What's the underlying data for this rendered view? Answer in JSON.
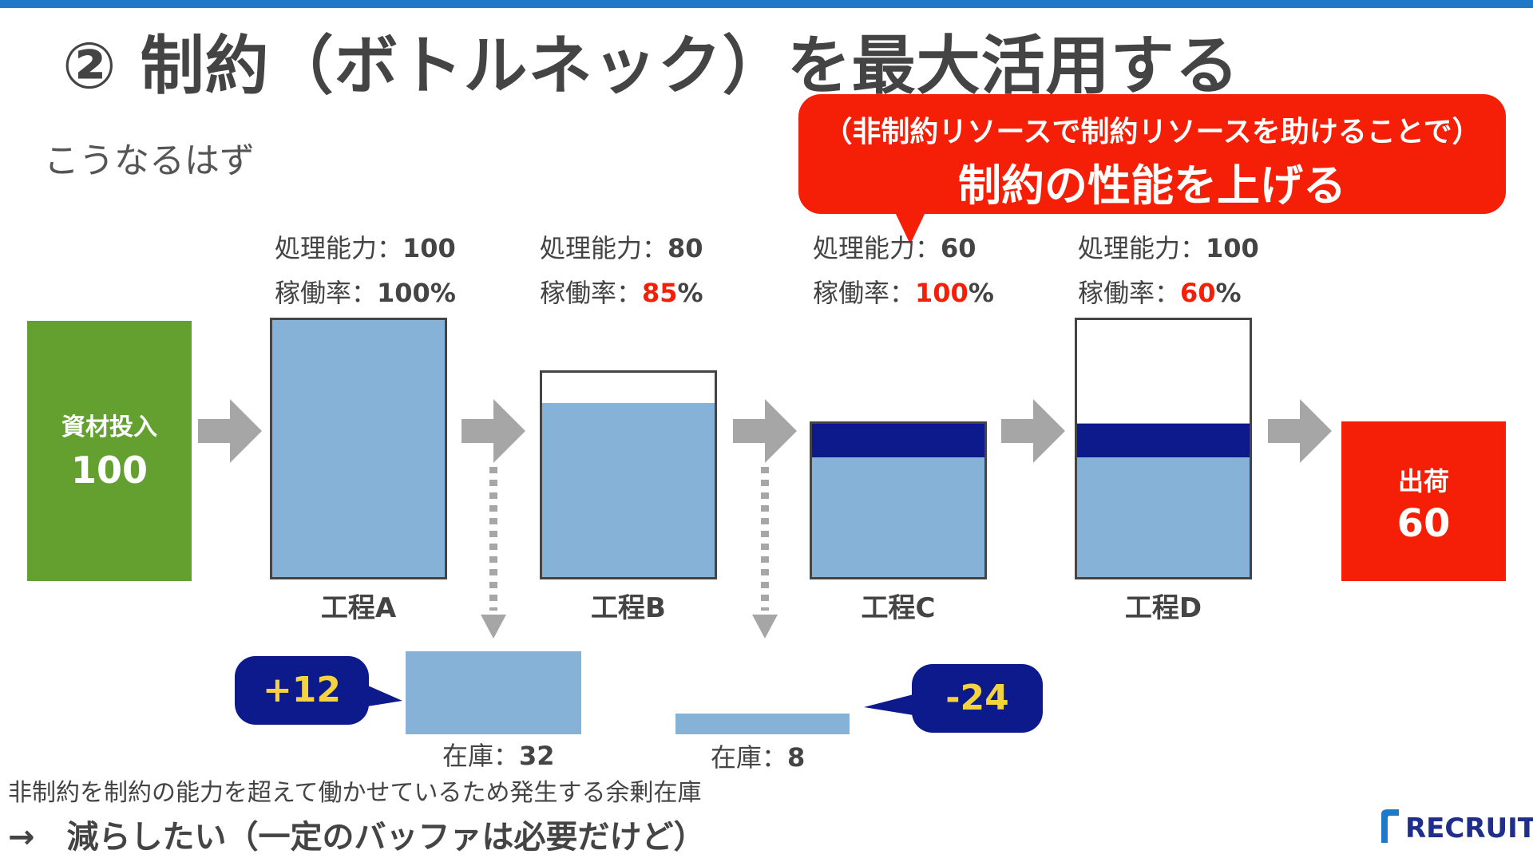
{
  "title": "② 制約（ボトルネック）を最大活用する",
  "subtitle": "こうなるはず",
  "callout": {
    "line1": "（非制約リソースで制約リソースを助けることで）",
    "line2": "制約の性能を上げる"
  },
  "input_box": {
    "label": "資材投入",
    "value": "100"
  },
  "output_box": {
    "label": "出荷",
    "value": "60"
  },
  "capacity_label": "処理能力：",
  "utilization_label": "稼働率：",
  "processes": [
    {
      "name": "工程A",
      "capacity": "100",
      "utilization": "100%",
      "fill_fraction": 1.0
    },
    {
      "name": "工程B",
      "capacity": "80",
      "utilization_num": "85",
      "utilization_unit": "%",
      "fill_fraction": 0.85
    },
    {
      "name": "工程C",
      "capacity": "60",
      "utilization_num": "100",
      "utilization_unit": "%",
      "fill_fraction": 1.0
    },
    {
      "name": "工程D",
      "capacity": "100",
      "utilization_num": "60",
      "utilization_unit": "%",
      "fill_fraction": 0.6
    }
  ],
  "inventory": [
    {
      "label": "在庫：",
      "value": "32",
      "badge": "+12"
    },
    {
      "label": "在庫：",
      "value": "8",
      "badge": "-24"
    }
  ],
  "note1": "非制約を制約の能力を超えて働かせているため発生する余剰在庫",
  "note2": "→　減らしたい（一定のバッファは必要だけど）",
  "logo": "RECRUIT",
  "colors": {
    "accent_red": "#f41f06",
    "input_green": "#63a02f",
    "fill_blue": "#87b2d7",
    "dark_navy": "#0d1a8c",
    "badge_yellow": "#f5d33e",
    "top_bar_blue": "#1f78c8"
  }
}
